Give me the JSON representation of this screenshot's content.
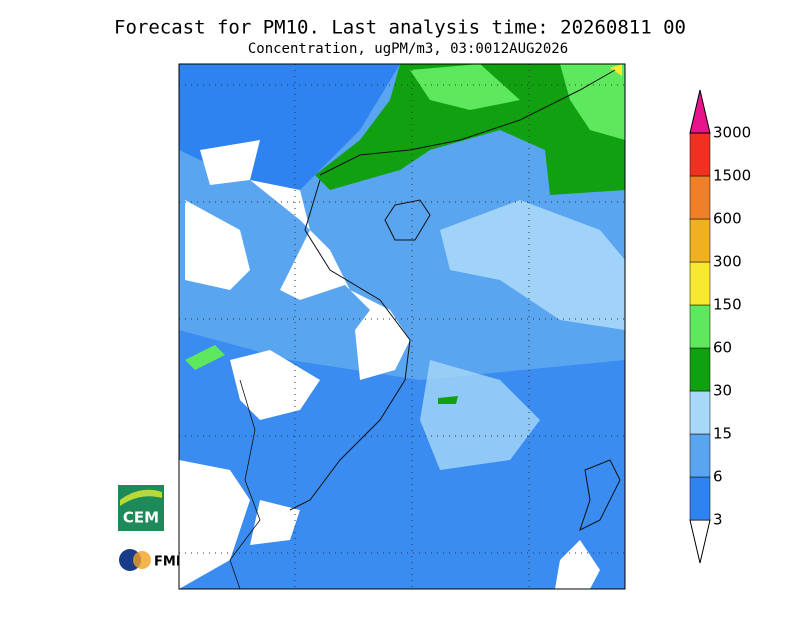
{
  "header": {
    "title": "Forecast for PM10. Last analysis time: 20260811 00",
    "subtitle": "Concentration, ugPM/m3, 03:0012AUG2026"
  },
  "legend": {
    "levels": [
      3,
      6,
      15,
      30,
      60,
      150,
      300,
      600,
      1500,
      3000
    ],
    "colors": [
      "#ffffff",
      "#2f83f0",
      "#5aa5f0",
      "#a8d8f8",
      "#10a010",
      "#5ee85e",
      "#f8e830",
      "#f0b020",
      "#f08028",
      "#f03020",
      "#e8148c"
    ]
  },
  "logos": {
    "cem": "CEM",
    "fmi": "FMI"
  }
}
